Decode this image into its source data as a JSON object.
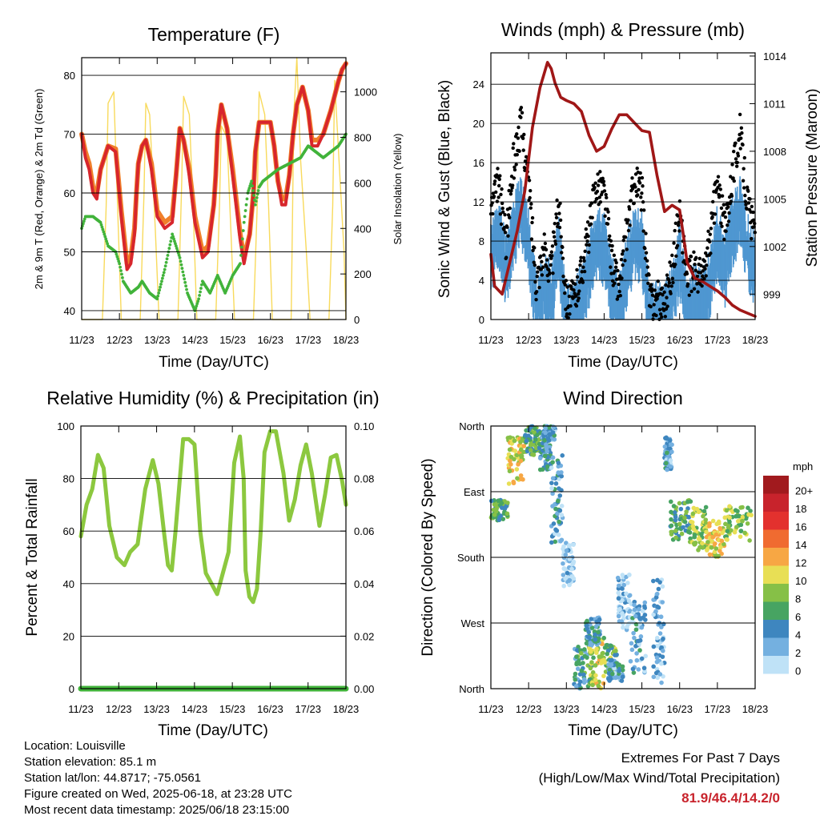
{
  "colors": {
    "temp2m": "#d7262c",
    "temp9m": "#f07f2a",
    "dewpoint": "#41b33a",
    "solar": "#f7d64a",
    "wind": "#4f97d1",
    "gust": "#000000",
    "pressure": "#a01717",
    "rh": "#8cc83f",
    "precip": "#41b33a"
  },
  "day_ticks": [
    "11/23",
    "12/23",
    "13/23",
    "14/23",
    "15/23",
    "16/23",
    "17/23",
    "18/23"
  ],
  "xlabel": "Time (Day/UTC)",
  "chart_data": [
    {
      "type": "line",
      "title": "Temperature (F)",
      "ylabel": "2m & 9m T (Red, Orange) & 2m Td (Green)",
      "y2label": "Solar Insolation (Yellow)",
      "ylim": [
        38.5,
        83
      ],
      "yticks": [
        40,
        50,
        60,
        70,
        80
      ],
      "y2lim": [
        0,
        1150
      ],
      "y2ticks": [
        0,
        200,
        400,
        600,
        800,
        1000
      ],
      "x_days": [
        0,
        7
      ],
      "series": [
        {
          "key": "temp2m",
          "x": [
            0,
            0.1,
            0.2,
            0.3,
            0.4,
            0.5,
            0.7,
            0.9,
            1.05,
            1.2,
            1.3,
            1.4,
            1.45,
            1.5,
            1.6,
            1.7,
            1.85,
            2.0,
            2.2,
            2.4,
            2.5,
            2.6,
            2.7,
            2.85,
            3.0,
            3.2,
            3.35,
            3.5,
            3.55,
            3.6,
            3.7,
            3.85,
            4.0,
            4.2,
            4.3,
            4.45,
            4.55,
            4.6,
            4.7,
            4.85,
            5.0,
            5.1,
            5.2,
            5.3,
            5.4,
            5.5,
            5.6,
            5.7,
            5.85,
            6.0,
            6.1,
            6.25,
            6.4,
            6.6,
            6.8,
            6.9,
            7.0
          ],
          "y": [
            70,
            66,
            64,
            60,
            59,
            64,
            68,
            67,
            56,
            47,
            48,
            53,
            60,
            65,
            68,
            69,
            64,
            56,
            54,
            55,
            63,
            71,
            69,
            63,
            55,
            49,
            50,
            58,
            63,
            70,
            75,
            71,
            63,
            52,
            48,
            53,
            60,
            67,
            72,
            72,
            72,
            68,
            62,
            58,
            58,
            63,
            70,
            75,
            78,
            74,
            68,
            68,
            70,
            74,
            79,
            81,
            82
          ]
        },
        {
          "key": "temp9m",
          "x": [
            0,
            0.1,
            0.2,
            0.3,
            0.4,
            0.5,
            0.7,
            0.9,
            1.05,
            1.2,
            1.3,
            1.4,
            1.45,
            1.5,
            1.6,
            1.7,
            1.85,
            2.0,
            2.2,
            2.4,
            2.5,
            2.6,
            2.7,
            2.85,
            3.0,
            3.2,
            3.35,
            3.5,
            3.55,
            3.6,
            3.7,
            3.85,
            4.0,
            4.2,
            4.3,
            4.45,
            4.55,
            4.6,
            4.7,
            4.85,
            5.0,
            5.1,
            5.2,
            5.3,
            5.4,
            5.5,
            5.6,
            5.7,
            5.85,
            6.0,
            6.1,
            6.25,
            6.4,
            6.6,
            6.8,
            6.9,
            7.0
          ],
          "y": [
            70,
            67,
            65,
            61,
            60,
            64,
            68,
            67.5,
            57,
            48,
            49,
            54,
            60,
            65,
            68,
            69,
            65,
            57,
            55,
            56,
            63,
            71,
            69,
            64,
            56,
            50,
            51,
            58,
            63,
            70,
            75,
            71,
            64,
            53,
            49,
            53,
            60,
            67,
            72,
            72,
            72,
            68,
            62,
            59,
            59,
            63,
            70,
            75,
            78,
            74,
            69,
            69,
            70,
            74,
            79,
            81,
            82
          ]
        },
        {
          "key": "dewpoint",
          "x": [
            0,
            0.1,
            0.3,
            0.5,
            0.7,
            0.9,
            1.0,
            1.1,
            1.3,
            1.5,
            1.6,
            1.8,
            2.0,
            2.2,
            2.4,
            2.6,
            2.8,
            3.0,
            3.1,
            3.2,
            3.4,
            3.6,
            3.8,
            4.0,
            4.1,
            4.2,
            4.3,
            4.4,
            4.5,
            4.6,
            4.7,
            4.8,
            5.0,
            5.2,
            5.5,
            5.8,
            6.0,
            6.2,
            6.4,
            6.6,
            6.8,
            7.0
          ],
          "y": [
            54,
            56,
            56,
            55,
            51,
            50,
            48,
            45,
            43,
            44,
            45,
            43,
            42,
            47,
            53,
            49,
            43,
            40,
            42,
            45,
            43,
            46,
            43,
            46,
            47,
            48,
            55,
            60,
            62,
            58,
            61,
            62,
            63,
            64,
            65,
            66,
            68,
            67,
            66,
            67,
            68,
            70
          ]
        },
        {
          "key": "solar",
          "x": [
            0,
            0.55,
            0.65,
            0.7,
            0.85,
            0.95,
            1.05,
            1.55,
            1.65,
            1.7,
            1.8,
            1.95,
            2.05,
            2.55,
            2.65,
            2.7,
            2.85,
            2.95,
            3.05,
            3.55,
            3.65,
            3.7,
            3.85,
            3.95,
            4.05,
            4.55,
            4.65,
            4.7,
            4.85,
            4.95,
            5.05,
            5.55,
            5.62,
            5.7,
            5.8,
            5.95,
            6.05,
            6.55,
            6.65,
            6.7,
            6.85,
            6.95,
            7.0
          ],
          "y": [
            0,
            0,
            500,
            950,
            1000,
            500,
            0,
            0,
            550,
            950,
            900,
            400,
            0,
            0,
            600,
            980,
            900,
            500,
            0,
            0,
            500,
            850,
            800,
            400,
            0,
            0,
            500,
            1000,
            900,
            500,
            0,
            0,
            900,
            1150,
            700,
            300,
            0,
            0,
            500,
            1050,
            600,
            300,
            0
          ]
        }
      ]
    },
    {
      "type": "line",
      "title": "Winds (mph) & Pressure (mb)",
      "ylabel": "Sonic Wind & Gust (Blue, Black)",
      "y2label": "Station Pressure (Maroon)",
      "ylim": [
        0,
        27.2
      ],
      "yticks": [
        0,
        4,
        8,
        12,
        16,
        20,
        24
      ],
      "y2lim": [
        997.4,
        1014.2
      ],
      "y2ticks": [
        999,
        1002,
        1005,
        1008,
        1011,
        1014
      ],
      "x_days": [
        0,
        7
      ],
      "series": [
        {
          "key": "wind",
          "x": [
            0,
            0.2,
            0.4,
            0.6,
            0.8,
            1.0,
            1.2,
            1.4,
            1.6,
            1.8,
            2.0,
            2.2,
            2.4,
            2.6,
            2.8,
            3.0,
            3.2,
            3.4,
            3.6,
            3.8,
            4.0,
            4.2,
            4.4,
            4.6,
            4.8,
            5.0,
            5.2,
            5.4,
            5.6,
            5.8,
            6.0,
            6.2,
            6.4,
            6.6,
            6.8,
            7.0
          ],
          "y": [
            7,
            10,
            6,
            10,
            12,
            9,
            2,
            4,
            3,
            8,
            1,
            1,
            3,
            6,
            9,
            8,
            4,
            2,
            6,
            9,
            8,
            1,
            1,
            1,
            3,
            7,
            2,
            3,
            2,
            5,
            9,
            6,
            10,
            12,
            8,
            6
          ]
        },
        {
          "key": "gust",
          "x": [
            0,
            0.2,
            0.4,
            0.6,
            0.8,
            1.0,
            1.2,
            1.4,
            1.6,
            1.8,
            2.0,
            2.2,
            2.4,
            2.6,
            2.8,
            3.0,
            3.2,
            3.4,
            3.6,
            3.8,
            4.0,
            4.2,
            4.4,
            4.6,
            4.8,
            5.0,
            5.2,
            5.4,
            5.6,
            5.8,
            6.0,
            6.2,
            6.4,
            6.6,
            6.8,
            7.0
          ],
          "y": [
            11,
            14,
            8,
            16,
            20,
            14,
            4,
            7,
            5,
            12,
            2,
            2,
            5,
            9,
            14,
            13,
            6,
            3,
            9,
            14,
            13,
            2,
            2,
            2,
            5,
            11,
            4,
            5,
            4,
            8,
            14,
            9,
            15,
            19,
            12,
            8
          ]
        },
        {
          "key": "pressure",
          "x": [
            0,
            0.1,
            0.3,
            0.5,
            0.7,
            0.9,
            1.1,
            1.3,
            1.5,
            1.6,
            1.7,
            1.85,
            2.0,
            2.2,
            2.4,
            2.6,
            2.8,
            3.0,
            3.2,
            3.4,
            3.6,
            3.8,
            4.0,
            4.2,
            4.4,
            4.6,
            4.8,
            5.0,
            5.1,
            5.2,
            5.4,
            5.6,
            5.8,
            6.0,
            6.2,
            6.4,
            6.6,
            6.8,
            7.0
          ],
          "y": [
            1001.5,
            999.5,
            999.0,
            1001.0,
            1003.0,
            1005.5,
            1009.5,
            1012.0,
            1013.6,
            1013.2,
            1012.3,
            1011.4,
            1011.2,
            1011.0,
            1010.5,
            1009.0,
            1008.0,
            1008.3,
            1009.4,
            1010.3,
            1010.3,
            1009.8,
            1009.3,
            1009.2,
            1006.5,
            1004.2,
            1004.6,
            1004.3,
            1002.7,
            1001.0,
            1000.0,
            999.8,
            999.5,
            999.2,
            998.8,
            998.3,
            998.0,
            997.8,
            997.6
          ]
        }
      ]
    },
    {
      "type": "line",
      "title": "Relative Humidity (%) & Precipitation (in)",
      "ylabel": "Percent & Total Rainfall",
      "ylim": [
        0,
        100
      ],
      "yticks": [
        0,
        20,
        40,
        60,
        80,
        100
      ],
      "y2lim": [
        0,
        0.1
      ],
      "y2ticks": [
        "0.00",
        "0.02",
        "0.04",
        "0.06",
        "0.08",
        "0.10"
      ],
      "x_days": [
        0,
        7
      ],
      "series": [
        {
          "key": "rh",
          "x": [
            0,
            0.15,
            0.3,
            0.45,
            0.6,
            0.75,
            0.95,
            1.15,
            1.3,
            1.5,
            1.7,
            1.9,
            2.05,
            2.2,
            2.3,
            2.4,
            2.5,
            2.7,
            2.85,
            3.0,
            3.15,
            3.3,
            3.45,
            3.6,
            3.75,
            3.9,
            4.05,
            4.2,
            4.3,
            4.35,
            4.45,
            4.55,
            4.65,
            4.75,
            4.85,
            5.0,
            5.15,
            5.35,
            5.5,
            5.65,
            5.8,
            5.95,
            6.1,
            6.3,
            6.45,
            6.6,
            6.75,
            6.9,
            7.0
          ],
          "y": [
            58,
            70,
            76,
            89,
            84,
            62,
            50,
            47,
            52,
            55,
            76,
            87,
            78,
            59,
            47,
            45,
            60,
            95,
            95,
            93,
            60,
            44,
            40,
            36,
            44,
            52,
            86,
            96,
            80,
            45,
            35,
            33,
            38,
            60,
            90,
            98,
            98,
            82,
            64,
            72,
            85,
            93,
            82,
            62,
            74,
            88,
            89,
            79,
            70
          ]
        },
        {
          "key": "precip",
          "x": [
            0,
            7
          ],
          "y": [
            0,
            0
          ]
        }
      ]
    },
    {
      "type": "scatter",
      "title": "Wind Direction",
      "ylabel": "Direction (Colored By Speed)",
      "yticks": [
        "North",
        "West",
        "South",
        "East",
        "North"
      ],
      "x_days": [
        0,
        7
      ],
      "legend": {
        "unit": "mph",
        "placement": "right",
        "labels": [
          "20+",
          "18",
          "16",
          "14",
          "12",
          "10",
          "8",
          "6",
          "4",
          "2",
          "0"
        ],
        "colors": [
          "#a11a1e",
          "#c8232c",
          "#e3312e",
          "#f06b30",
          "#f7a744",
          "#e8df55",
          "#86c047",
          "#47a462",
          "#3e86bf",
          "#74b0e0",
          "#bfe2f7"
        ]
      }
    }
  ],
  "footer": {
    "location": "Location: Louisville",
    "elevation": "Station elevation: 85.1 m",
    "latlon": "Station lat/lon: 44.8717; -75.0561",
    "created": "Figure created on Wed, 2025-06-18, at 23:28 UTC",
    "recent": "Most recent data timestamp: 2025/06/18 23:15:00"
  },
  "extremes": {
    "title": "Extremes For Past 7 Days",
    "subtitle": "(High/Low/Max Wind/Total Precipitation)",
    "values": "81.9/46.4/14.2/0"
  }
}
